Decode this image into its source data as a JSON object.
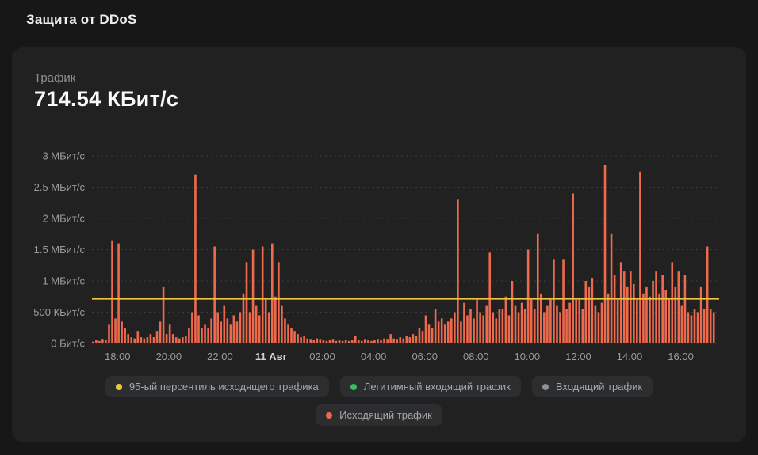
{
  "page": {
    "title": "Защита от DDoS"
  },
  "panel": {
    "metric_label": "Трафик",
    "metric_value": "714.54 КБит/с"
  },
  "chart_data": {
    "type": "bar",
    "title": "Трафик",
    "unit": "МБит/с",
    "ylim": [
      0,
      3
    ],
    "hours_span": 24.5,
    "grid": "dotted-horizontal",
    "grid_color": "#3b3b3c",
    "axis_text_color": "#9b9c9d",
    "axis_text_bold_color": "#d2d3d4",
    "y_ticks": [
      {
        "label": "3 МБит/с",
        "value": 3.0
      },
      {
        "label": "2.5 МБит/с",
        "value": 2.5
      },
      {
        "label": "2 МБит/с",
        "value": 2.0
      },
      {
        "label": "1.5 МБит/с",
        "value": 1.5
      },
      {
        "label": "1 МБит/с",
        "value": 1.0
      },
      {
        "label": "500 КБит/с",
        "value": 0.5
      },
      {
        "label": "0 Бит/с",
        "value": 0.0
      }
    ],
    "x_ticks": [
      {
        "label": "18:00",
        "hour": 1
      },
      {
        "label": "20:00",
        "hour": 3
      },
      {
        "label": "22:00",
        "hour": 5
      },
      {
        "label": "11 Авг",
        "hour": 7,
        "bold": true
      },
      {
        "label": "02:00",
        "hour": 9
      },
      {
        "label": "04:00",
        "hour": 11
      },
      {
        "label": "06:00",
        "hour": 13
      },
      {
        "label": "08:00",
        "hour": 15
      },
      {
        "label": "10:00",
        "hour": 17
      },
      {
        "label": "12:00",
        "hour": 19
      },
      {
        "label": "14:00",
        "hour": 21
      },
      {
        "label": "16:00",
        "hour": 23
      }
    ],
    "percentile_line": {
      "label": "95-ый персентиль исходящего трафика",
      "value_mbit": 0.714,
      "value_text": "714.54 КБит/с",
      "color": "#f0c53d"
    },
    "series": [
      {
        "name": "Исходящий трафик",
        "color": "#ee6a4d",
        "start_time": "10 Авг 17:00",
        "sample_interval_minutes": 7.5,
        "values_mbit": [
          0.03,
          0.05,
          0.04,
          0.06,
          0.05,
          0.3,
          1.65,
          0.4,
          1.6,
          0.35,
          0.25,
          0.15,
          0.1,
          0.08,
          0.2,
          0.1,
          0.08,
          0.1,
          0.15,
          0.1,
          0.2,
          0.35,
          0.9,
          0.15,
          0.3,
          0.15,
          0.1,
          0.08,
          0.1,
          0.12,
          0.25,
          0.5,
          2.7,
          0.45,
          0.25,
          0.3,
          0.25,
          0.4,
          1.55,
          0.5,
          0.35,
          0.6,
          0.4,
          0.3,
          0.45,
          0.35,
          0.5,
          0.8,
          1.3,
          0.5,
          1.5,
          0.6,
          0.45,
          1.55,
          0.7,
          0.5,
          1.6,
          0.75,
          1.3,
          0.6,
          0.4,
          0.3,
          0.25,
          0.2,
          0.15,
          0.1,
          0.12,
          0.08,
          0.06,
          0.05,
          0.08,
          0.06,
          0.05,
          0.04,
          0.05,
          0.06,
          0.04,
          0.05,
          0.04,
          0.05,
          0.04,
          0.05,
          0.12,
          0.05,
          0.04,
          0.06,
          0.05,
          0.04,
          0.05,
          0.06,
          0.05,
          0.08,
          0.06,
          0.15,
          0.08,
          0.06,
          0.1,
          0.08,
          0.12,
          0.1,
          0.15,
          0.12,
          0.25,
          0.2,
          0.45,
          0.3,
          0.25,
          0.55,
          0.35,
          0.4,
          0.3,
          0.35,
          0.4,
          0.5,
          2.3,
          0.35,
          0.65,
          0.45,
          0.55,
          0.4,
          0.7,
          0.5,
          0.45,
          0.6,
          1.45,
          0.5,
          0.4,
          0.55,
          0.55,
          0.75,
          0.45,
          1.0,
          0.6,
          0.5,
          0.65,
          0.55,
          1.5,
          0.7,
          0.55,
          1.75,
          0.8,
          0.5,
          0.6,
          0.7,
          1.35,
          0.6,
          0.5,
          1.35,
          0.55,
          0.65,
          2.4,
          0.7,
          0.7,
          0.55,
          1.0,
          0.9,
          1.05,
          0.6,
          0.5,
          0.65,
          2.85,
          0.8,
          1.75,
          1.1,
          0.7,
          1.3,
          1.15,
          0.9,
          1.15,
          0.95,
          0.7,
          2.75,
          0.8,
          0.9,
          0.75,
          1.0,
          1.15,
          0.8,
          1.1,
          0.85,
          0.7,
          1.3,
          0.9,
          1.15,
          0.6,
          1.1,
          0.5,
          0.45,
          0.55,
          0.5,
          0.9,
          0.55,
          1.55,
          0.55,
          0.5
        ]
      }
    ]
  },
  "legend": {
    "items": [
      {
        "label": "95-ый персентиль исходящего трафика",
        "color": "#f0c53d"
      },
      {
        "label": "Легитимный входящий трафик",
        "color": "#35c05c"
      },
      {
        "label": "Входящий трафик",
        "color": "#8f9092"
      },
      {
        "label": "Исходящий трафик",
        "color": "#ee6a4d"
      }
    ]
  }
}
